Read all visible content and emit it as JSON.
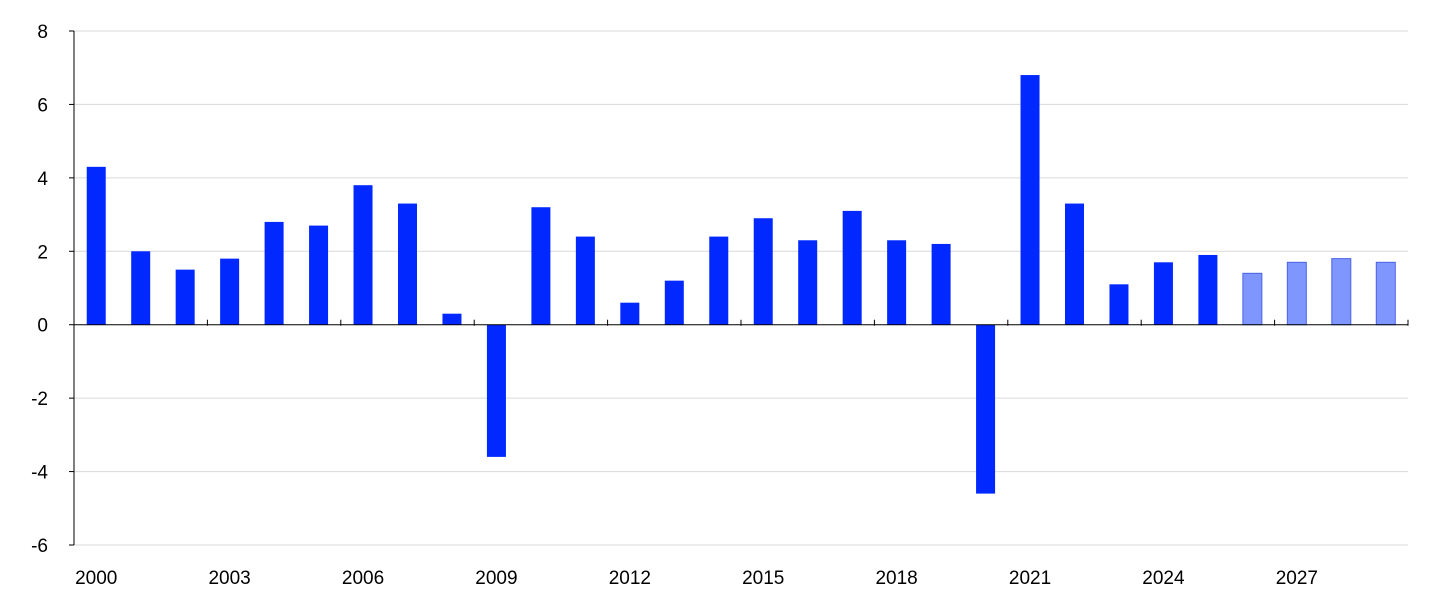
{
  "chart_data": {
    "type": "bar",
    "title": "",
    "xlabel": "",
    "ylabel": "",
    "ylim": [
      -6,
      8
    ],
    "yticks": [
      8,
      6,
      4,
      2,
      0,
      -2,
      -4,
      -6
    ],
    "grid": "horizontal",
    "legend": "none",
    "categories": [
      "2000",
      "2001",
      "2002",
      "2003",
      "2004",
      "2005",
      "2006",
      "2007",
      "2008",
      "2009",
      "2010",
      "2011",
      "2012",
      "2013",
      "2014",
      "2015",
      "2016",
      "2017",
      "2018",
      "2019",
      "2020",
      "2021",
      "2022",
      "2023",
      "2024",
      "2025",
      "2026",
      "2027",
      "2028",
      "2029"
    ],
    "xtick_labels": [
      "2000",
      "2003",
      "2006",
      "2009",
      "2012",
      "2015",
      "2018",
      "2021",
      "2024",
      "2027"
    ],
    "series": [
      {
        "values": [
          4.3,
          2.0,
          1.5,
          1.8,
          2.8,
          2.7,
          3.8,
          3.3,
          0.3,
          -3.6,
          3.2,
          2.4,
          0.6,
          1.2,
          2.4,
          2.9,
          2.3,
          3.1,
          2.3,
          2.2,
          -4.6,
          6.8,
          3.3,
          1.1,
          1.7,
          1.9,
          1.4,
          1.7,
          1.8,
          1.7
        ],
        "color": "#0028ff",
        "projection_from_index": 26,
        "projection_color": "#8096ff"
      }
    ]
  }
}
